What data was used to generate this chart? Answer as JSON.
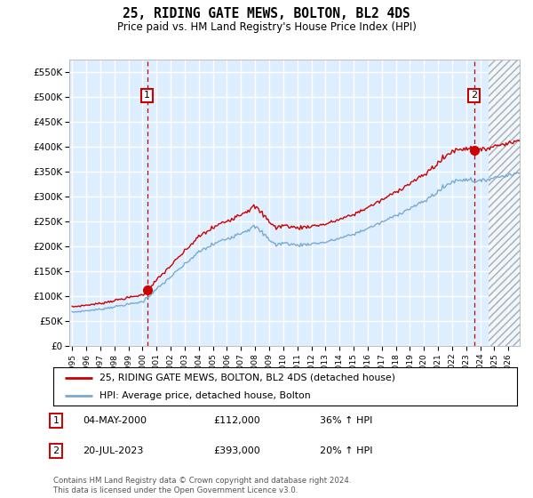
{
  "title": "25, RIDING GATE MEWS, BOLTON, BL2 4DS",
  "subtitle": "Price paid vs. HM Land Registry's House Price Index (HPI)",
  "yticks": [
    0,
    50000,
    100000,
    150000,
    200000,
    250000,
    300000,
    350000,
    400000,
    450000,
    500000,
    550000
  ],
  "ytick_labels": [
    "£0",
    "£50K",
    "£100K",
    "£150K",
    "£200K",
    "£250K",
    "£300K",
    "£350K",
    "£400K",
    "£450K",
    "£500K",
    "£550K"
  ],
  "xlim_start": 1994.8,
  "xlim_end": 2026.8,
  "ylim_min": 0,
  "ylim_max": 575000,
  "hpi_color": "#7aaad0",
  "price_color": "#cc0000",
  "sale1_x": 2000.34,
  "sale1_y": 112000,
  "sale1_label": "1",
  "sale1_date": "04-MAY-2000",
  "sale1_price": "£112,000",
  "sale1_hpi": "36% ↑ HPI",
  "sale2_x": 2023.55,
  "sale2_y": 393000,
  "sale2_label": "2",
  "sale2_date": "20-JUL-2023",
  "sale2_price": "£393,000",
  "sale2_hpi": "20% ↑ HPI",
  "legend_line1": "25, RIDING GATE MEWS, BOLTON, BL2 4DS (detached house)",
  "legend_line2": "HPI: Average price, detached house, Bolton",
  "footnote": "Contains HM Land Registry data © Crown copyright and database right 2024.\nThis data is licensed under the Open Government Licence v3.0.",
  "background_color": "#ddeeff",
  "grid_color": "#ffffff",
  "vline_color": "#cc0000",
  "box_color": "#cc0000",
  "hatch_start": 2024.58
}
